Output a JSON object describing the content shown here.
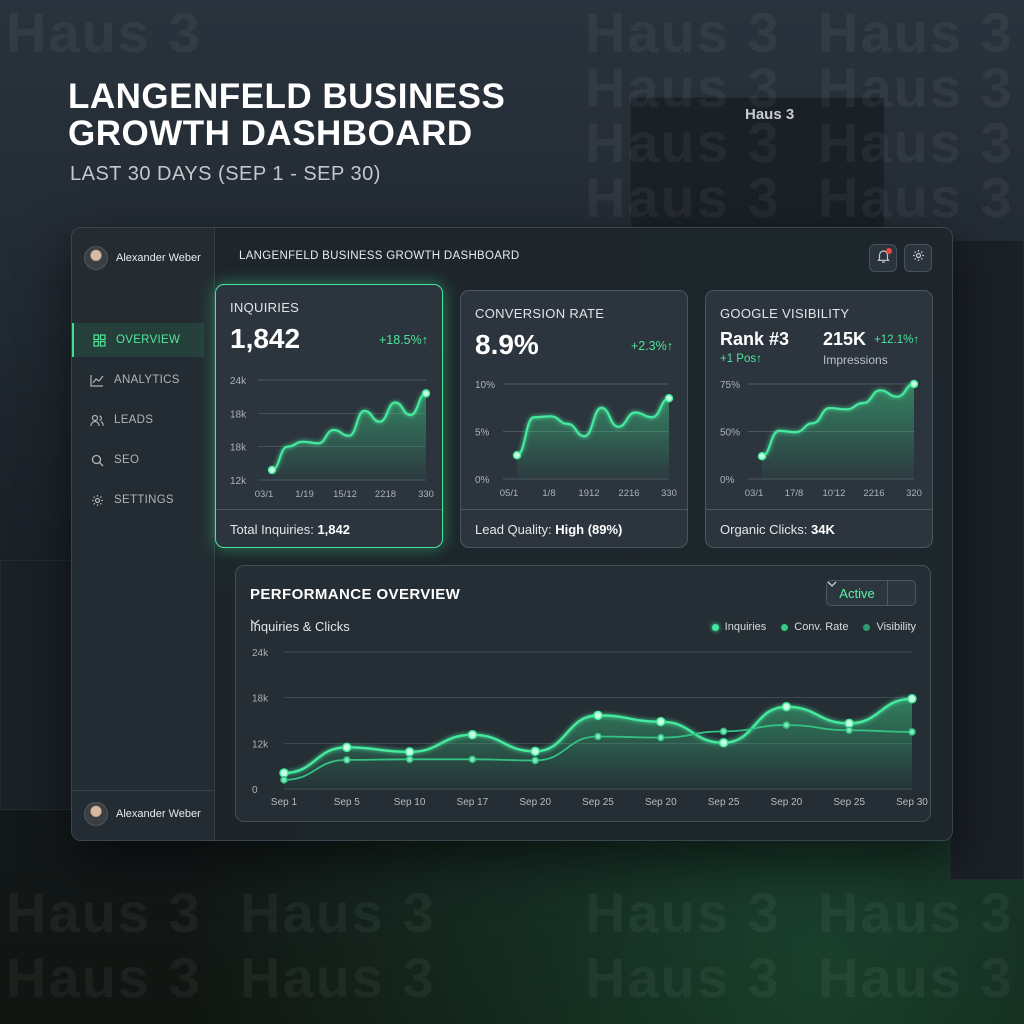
{
  "hero": {
    "title": "LANGENFELD BUSINESS GROWTH DASHBOARD",
    "subtitle": "LAST 30 DAYS (SEP 1 - SEP 30)"
  },
  "building_sign": "Haus 3",
  "watermark": "Haus 3",
  "sidebar": {
    "user_top": "Alexander Weber",
    "user_bottom": "Alexander Weber",
    "items": [
      {
        "label": "OVERVIEW",
        "icon": "grid-icon",
        "active": true
      },
      {
        "label": "ANALYTICS",
        "icon": "chart-line-icon",
        "active": false
      },
      {
        "label": "LEADS",
        "icon": "users-icon",
        "active": false
      },
      {
        "label": "SEO",
        "icon": "search-icon",
        "active": false
      },
      {
        "label": "SETTINGS",
        "icon": "gear-icon",
        "active": false
      }
    ]
  },
  "header": {
    "title": "LANGENFELD BUSINESS GROWTH DASHBOARD",
    "notification_icon": "bell-icon",
    "settings_icon": "gear-icon"
  },
  "colors": {
    "accent": "#3ee08f",
    "line_secondary": "#2fbf7a",
    "alert": "#ef4444"
  },
  "cards": {
    "inquiries": {
      "label": "INQUIRIES",
      "value": "1,842",
      "change": "+18.5%↑",
      "footer_label": "Total Inquiries: ",
      "footer_value": "1,842",
      "chart": {
        "ticks": [
          "24k",
          "18k",
          "18k",
          "12k"
        ],
        "x_labels": [
          "03/1",
          "1/19",
          "15/12",
          "2218",
          "330"
        ],
        "values": [
          13.2,
          16.0,
          16.6,
          16.4,
          18.0,
          17.3,
          20.3,
          19.0,
          21.3,
          19.8,
          22.4
        ]
      }
    },
    "conversion": {
      "label": "CONVERSION RATE",
      "value": "8.9%",
      "change": "+2.3%↑",
      "footer_label": "Lead Quality: ",
      "footer_value": "High (89%)",
      "chart": {
        "ticks": [
          "10%",
          "5%",
          "0%"
        ],
        "x_labels": [
          "05/1",
          "1/8",
          "1912",
          "2216",
          "330"
        ],
        "values": [
          2.5,
          6.5,
          6.6,
          5.8,
          4.5,
          7.5,
          5.5,
          7.0,
          6.5,
          8.5
        ]
      }
    },
    "visibility": {
      "label": "GOOGLE VISIBILITY",
      "rank": "Rank #3",
      "rank_change": "+1 Pos↑",
      "impressions": "215K",
      "impressions_change": "+12.1%↑",
      "impressions_label": "Impressions",
      "footer_label": "Organic Clicks: ",
      "footer_value": "34K",
      "chart": {
        "ticks": [
          "75%",
          "50%",
          "0%"
        ],
        "x_labels": [
          "03/1",
          "17/8",
          "10'12",
          "2216",
          "320"
        ],
        "values": [
          18,
          38,
          37,
          44,
          56,
          55,
          60,
          70,
          65,
          75
        ]
      }
    }
  },
  "performance": {
    "title": "PERFORMANCE OVERVIEW",
    "selector": "Inquiries & Clicks",
    "status": "Active",
    "legend": [
      "Inquiries",
      "Conv. Rate",
      "Visibility"
    ]
  },
  "chart_data": {
    "type": "line",
    "categories": [
      "Sep 1",
      "Sep 5",
      "Sep 10",
      "Sep 17",
      "Sep 20",
      "Sep 25",
      "Sep 20",
      "Sep 25",
      "Sep 20",
      "Sep 25",
      "Sep 30"
    ],
    "y_ticks": [
      "24k",
      "18k",
      "12k",
      "0"
    ],
    "ylim": [
      0,
      24000
    ],
    "grid": true,
    "legend_position": "top-right",
    "series": [
      {
        "name": "Inquiries",
        "values": [
          2800,
          7300,
          6500,
          9500,
          6600,
          12900,
          11800,
          8100,
          14400,
          11500,
          15800
        ]
      },
      {
        "name": "Conv. Rate",
        "values": [
          1600,
          5100,
          5200,
          5200,
          5000,
          9200,
          9000,
          10100,
          11200,
          10300,
          10000
        ]
      }
    ]
  }
}
